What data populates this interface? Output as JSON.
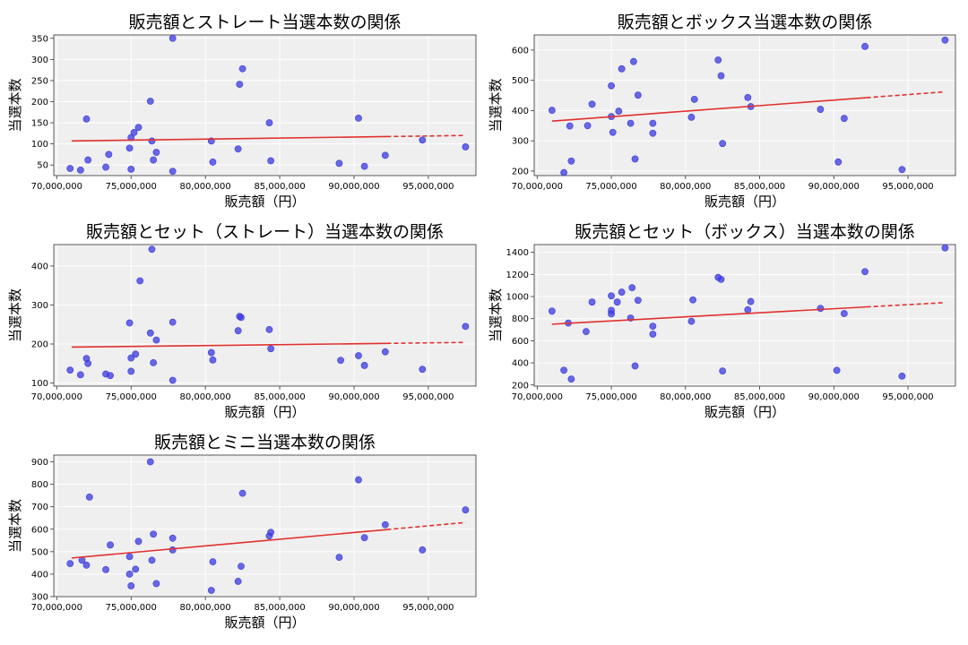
{
  "colors": {
    "point": "#3a3adf",
    "trend": "#e0302e",
    "panel_bg": "#efefef",
    "grid": "#ffffff"
  },
  "chart_data": [
    {
      "type": "scatter",
      "title": "販売額とストレート当選本数の関係",
      "xlabel": "販売額（円）",
      "ylabel": "当選本数",
      "xlim": [
        69800000,
        98200000
      ],
      "ylim": [
        25,
        358
      ],
      "xticks": [
        70000000,
        75000000,
        80000000,
        85000000,
        90000000,
        95000000
      ],
      "xtick_labels": [
        "70,000,000",
        "75,000,000",
        "80,000,000",
        "85,000,000",
        "90,000,000",
        "95,000,000"
      ],
      "yticks": [
        50,
        100,
        150,
        200,
        250,
        300,
        350
      ],
      "ytick_labels": [
        "50",
        "100",
        "150",
        "200",
        "250",
        "300",
        "350"
      ],
      "grid": true,
      "x": [
        70900000,
        71600000,
        72000000,
        72100000,
        73300000,
        73500000,
        74900000,
        75000000,
        75000000,
        75200000,
        75500000,
        76300000,
        76400000,
        76500000,
        76700000,
        77800000,
        77800000,
        80400000,
        80500000,
        82200000,
        82300000,
        82500000,
        84300000,
        84400000,
        89000000,
        90300000,
        90700000,
        92100000,
        94600000,
        97500000
      ],
      "y": [
        42,
        38,
        159,
        62,
        45,
        75,
        90,
        115,
        40,
        127,
        139,
        201,
        107,
        62,
        80,
        35,
        350,
        107,
        57,
        88,
        241,
        278,
        150,
        60,
        54,
        161,
        47,
        73,
        109,
        93
      ],
      "trend": {
        "x": [
          71000000,
          97500000
        ],
        "y": [
          107,
          120
        ]
      }
    },
    {
      "type": "scatter",
      "title": "販売額とボックス当選本数の関係",
      "xlabel": "販売額（円）",
      "ylabel": "当選本数",
      "xlim": [
        69800000,
        98200000
      ],
      "ylim": [
        185,
        650
      ],
      "xticks": [
        70000000,
        75000000,
        80000000,
        85000000,
        90000000,
        95000000
      ],
      "xtick_labels": [
        "70,000,000",
        "75,000,000",
        "80,000,000",
        "85,000,000",
        "90,000,000",
        "95,000,000"
      ],
      "yticks": [
        200,
        300,
        400,
        500,
        600
      ],
      "ytick_labels": [
        "200",
        "300",
        "400",
        "500",
        "600"
      ],
      "grid": true,
      "x": [
        71000000,
        71800000,
        72200000,
        72300000,
        73400000,
        73700000,
        75000000,
        75000000,
        75100000,
        75500000,
        75700000,
        76300000,
        76500000,
        76600000,
        76800000,
        77800000,
        77800000,
        80400000,
        80600000,
        82200000,
        82400000,
        82500000,
        84200000,
        84400000,
        89100000,
        90300000,
        90700000,
        92100000,
        94600000,
        97500000
      ],
      "y": [
        401,
        195,
        349,
        233,
        350,
        421,
        380,
        482,
        328,
        398,
        538,
        358,
        562,
        240,
        451,
        325,
        358,
        378,
        437,
        567,
        515,
        291,
        443,
        413,
        404,
        230,
        374,
        612,
        205,
        633
      ],
      "trend": {
        "x": [
          71000000,
          97500000
        ],
        "y": [
          365,
          462
        ]
      }
    },
    {
      "type": "scatter",
      "title": "販売額とセット（ストレート）当選本数の関係",
      "xlabel": "販売額（円）",
      "ylabel": "当選本数",
      "xlim": [
        69800000,
        98200000
      ],
      "ylim": [
        92,
        455
      ],
      "xticks": [
        70000000,
        75000000,
        80000000,
        85000000,
        90000000,
        95000000
      ],
      "xtick_labels": [
        "70,000,000",
        "75,000,000",
        "80,000,000",
        "85,000,000",
        "90,000,000",
        "95,000,000"
      ],
      "yticks": [
        100,
        200,
        300,
        400
      ],
      "ytick_labels": [
        "100",
        "200",
        "300",
        "400"
      ],
      "grid": true,
      "x": [
        70900000,
        71600000,
        72000000,
        72100000,
        73300000,
        73600000,
        74900000,
        75000000,
        75000000,
        75300000,
        75600000,
        76300000,
        76400000,
        76500000,
        76700000,
        77800000,
        77800000,
        80400000,
        80500000,
        82200000,
        82300000,
        82400000,
        84300000,
        84400000,
        89100000,
        90300000,
        90700000,
        92100000,
        94600000,
        97500000
      ],
      "y": [
        133,
        121,
        163,
        150,
        123,
        119,
        254,
        164,
        130,
        174,
        362,
        228,
        443,
        152,
        210,
        107,
        256,
        178,
        159,
        234,
        271,
        268,
        237,
        188,
        158,
        170,
        145,
        180,
        135,
        245
      ],
      "trend": {
        "x": [
          71000000,
          97500000
        ],
        "y": [
          192,
          204
        ]
      }
    },
    {
      "type": "scatter",
      "title": "販売額とセット（ボックス）当選本数の関係",
      "xlabel": "販売額（円）",
      "ylabel": "当選本数",
      "xlim": [
        69800000,
        98200000
      ],
      "ylim": [
        190,
        1470
      ],
      "xticks": [
        70000000,
        75000000,
        80000000,
        85000000,
        90000000,
        95000000
      ],
      "xtick_labels": [
        "70,000,000",
        "75,000,000",
        "80,000,000",
        "85,000,000",
        "90,000,000",
        "95,000,000"
      ],
      "yticks": [
        200,
        400,
        600,
        800,
        1000,
        1200,
        1400
      ],
      "ytick_labels": [
        "200",
        "400",
        "600",
        "800",
        "1000",
        "1200",
        "1400"
      ],
      "grid": true,
      "x": [
        71000000,
        71800000,
        72100000,
        72300000,
        73300000,
        73700000,
        75000000,
        75000000,
        75000000,
        75400000,
        75700000,
        76300000,
        76400000,
        76600000,
        76800000,
        77800000,
        77800000,
        80400000,
        80500000,
        82200000,
        82400000,
        82500000,
        84200000,
        84400000,
        89100000,
        90200000,
        90700000,
        92100000,
        94600000,
        97500000
      ],
      "y": [
        868,
        334,
        760,
        254,
        683,
        950,
        874,
        1006,
        843,
        950,
        1040,
        806,
        1080,
        372,
        966,
        660,
        732,
        776,
        970,
        1173,
        1155,
        327,
        880,
        955,
        893,
        333,
        846,
        1225,
        280,
        1440
      ],
      "trend": {
        "x": [
          71000000,
          97500000
        ],
        "y": [
          750,
          945
        ]
      }
    },
    {
      "type": "scatter",
      "title": "販売額とミニ当選本数の関係",
      "xlabel": "販売額（円）",
      "ylabel": "当選本数",
      "xlim": [
        69800000,
        98200000
      ],
      "ylim": [
        300,
        930
      ],
      "xticks": [
        70000000,
        75000000,
        80000000,
        85000000,
        90000000,
        95000000
      ],
      "xtick_labels": [
        "70,000,000",
        "75,000,000",
        "80,000,000",
        "85,000,000",
        "90,000,000",
        "95,000,000"
      ],
      "yticks": [
        300,
        400,
        500,
        600,
        700,
        800,
        900
      ],
      "ytick_labels": [
        "300",
        "400",
        "500",
        "600",
        "700",
        "800",
        "900"
      ],
      "grid": true,
      "x": [
        70900000,
        71700000,
        72000000,
        72200000,
        73300000,
        73600000,
        74900000,
        74900000,
        75000000,
        75300000,
        75500000,
        76300000,
        76400000,
        76500000,
        76700000,
        77800000,
        77800000,
        80400000,
        80500000,
        82200000,
        82400000,
        82500000,
        84300000,
        84400000,
        89000000,
        90300000,
        90700000,
        92100000,
        94600000,
        97500000
      ],
      "y": [
        447,
        462,
        440,
        743,
        420,
        530,
        478,
        400,
        348,
        422,
        546,
        900,
        462,
        578,
        358,
        560,
        508,
        328,
        455,
        368,
        435,
        760,
        570,
        586,
        475,
        820,
        562,
        620,
        508,
        686
      ],
      "trend": {
        "x": [
          71000000,
          97500000
        ],
        "y": [
          472,
          630
        ]
      }
    }
  ]
}
